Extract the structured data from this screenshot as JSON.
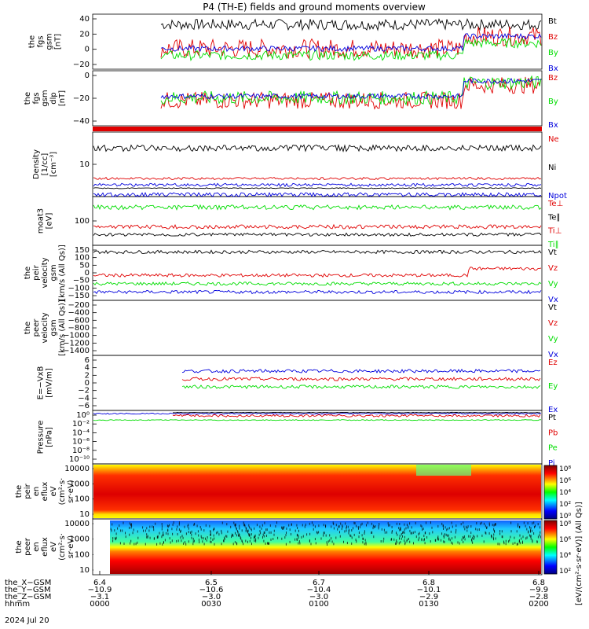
{
  "title": "P4 (TH-E) fields and ground moments overview",
  "colors": {
    "black": "#000000",
    "red": "#e00000",
    "green": "#00dd00",
    "blue": "#0000dd"
  },
  "chart_data": [
    {
      "type": "line",
      "panel": "fgs-gsm-1",
      "ylabel": [
        "the",
        "fgs",
        "gsm",
        "[nT]"
      ],
      "yticks": [
        "40",
        "20",
        "0",
        "−20"
      ],
      "ylim": [
        -35,
        45
      ],
      "series": [
        {
          "name": "Bt",
          "color": "black",
          "level": 30,
          "noise": 8
        },
        {
          "name": "Bz",
          "color": "red",
          "level": -5,
          "noise": 14
        },
        {
          "name": "By",
          "color": "green",
          "level": -15,
          "noise": 7
        },
        {
          "name": "Bx",
          "color": "blue",
          "level": -5,
          "noise": 4
        }
      ]
    },
    {
      "type": "line",
      "panel": "fgs-gsm-2",
      "ylabel": [
        "the",
        "fgs",
        "gsm",
        "dlp",
        "[nT]"
      ],
      "yticks": [
        "0",
        "−20",
        "−40"
      ],
      "ylim": [
        -55,
        10
      ],
      "series": [
        {
          "name": "Bz",
          "color": "red",
          "level": -25,
          "noise": 10
        },
        {
          "name": "By",
          "color": "green",
          "level": -22,
          "noise": 8
        },
        {
          "name": "Bx",
          "color": "blue",
          "level": -20,
          "noise": 3
        }
      ]
    },
    {
      "type": "line",
      "panel": "density",
      "ylabel": [
        "Density",
        "[1/cc]",
        "[cm⁻³]"
      ],
      "yticks": [
        "10"
      ],
      "series": [
        {
          "name": "Ne",
          "color": "red"
        },
        {
          "name": "Ni",
          "color": "black"
        },
        {
          "name": "Npot",
          "color": "blue"
        }
      ]
    },
    {
      "type": "line",
      "panel": "temperature",
      "ylabel": [
        "moat3",
        "[eV]"
      ],
      "yticks": [
        "100"
      ],
      "series": [
        {
          "name": "Te⊥",
          "color": "red"
        },
        {
          "name": "Te∥",
          "color": "black"
        },
        {
          "name": "Ti⊥",
          "color": "red"
        },
        {
          "name": "Ti∥",
          "color": "green"
        }
      ]
    },
    {
      "type": "line",
      "panel": "peir-velocity",
      "ylabel": [
        "the",
        "peir",
        "velocity",
        "gsm",
        "[km/s (All Qs)]"
      ],
      "yticks": [
        "150",
        "100",
        "50",
        "0",
        "−50",
        "−100",
        "−150"
      ],
      "ylim": [
        -160,
        170
      ],
      "series": [
        {
          "name": "Vt",
          "color": "black",
          "level": 130
        },
        {
          "name": "Vz",
          "color": "red",
          "level": -10
        },
        {
          "name": "Vy",
          "color": "green",
          "level": -60
        },
        {
          "name": "Vx",
          "color": "blue",
          "level": -110
        }
      ]
    },
    {
      "type": "line",
      "panel": "peer-velocity",
      "ylabel": [
        "the",
        "peer",
        "velocity",
        "gsm",
        "[km/s (All Qs)]"
      ],
      "yticks": [
        "−200",
        "−400",
        "−600",
        "−800",
        "−1000",
        "−1200",
        "−1400"
      ],
      "ylim": [
        -1450,
        -150
      ],
      "series": [
        {
          "name": "Vt",
          "color": "black"
        },
        {
          "name": "Vz",
          "color": "red"
        },
        {
          "name": "Vy",
          "color": "green"
        },
        {
          "name": "Vx",
          "color": "blue"
        }
      ]
    },
    {
      "type": "line",
      "panel": "efield",
      "ylabel": [
        "E=−VxB",
        "[mV/m]"
      ],
      "yticks": [
        "6",
        "4",
        "2",
        "0",
        "−2",
        "−4",
        "−6"
      ],
      "ylim": [
        -7,
        7
      ],
      "series": [
        {
          "name": "Ez",
          "color": "red",
          "level": 1
        },
        {
          "name": "Ey",
          "color": "green",
          "level": -1
        },
        {
          "name": "Ex",
          "color": "blue",
          "level": 3
        }
      ]
    },
    {
      "type": "line",
      "panel": "pressure",
      "ylabel": [
        "Pressure",
        "[nPa]"
      ],
      "yticks": [
        "10⁰",
        "10⁻²",
        "10⁻⁴",
        "10⁻⁶",
        "10⁻⁸",
        "10⁻¹⁰"
      ],
      "series": [
        {
          "name": "Pt",
          "color": "black"
        },
        {
          "name": "Pb",
          "color": "red"
        },
        {
          "name": "Pe",
          "color": "green"
        },
        {
          "name": "Pi",
          "color": "blue"
        }
      ]
    },
    {
      "type": "heatmap",
      "panel": "peir-spectrogram",
      "ylabel": [
        "the",
        "peir",
        "en",
        "eflux",
        "eV",
        "(cm²·s·",
        "sr·eV)"
      ],
      "yticks": [
        "10000",
        "1000",
        "100",
        "10"
      ],
      "colorbar_ticks": [
        "10⁸",
        "10⁶",
        "10⁴",
        "10²",
        "10⁰"
      ]
    },
    {
      "type": "heatmap",
      "panel": "peer-spectrogram",
      "ylabel": [
        "the",
        "peer",
        "en",
        "eflux",
        "eV",
        "(cm²·s·",
        "sr·eV)"
      ],
      "yticks": [
        "10000",
        "1000",
        "100",
        "10"
      ],
      "colorbar_ticks": [
        "10⁸",
        "10⁶",
        "10⁴",
        "10²"
      ]
    }
  ],
  "colorbar_label": "[eV/(cm²·s·sr·eV)] (All Qs)]",
  "xaxis": {
    "rows": [
      {
        "label": "the_X−GSM",
        "values": [
          "6.4",
          "6.5",
          "6.7",
          "6.8",
          "6.8"
        ]
      },
      {
        "label": "the_Y−GSM",
        "values": [
          "−10.9",
          "−10.6",
          "−10.4",
          "−10.1",
          "−9.9"
        ]
      },
      {
        "label": "the_Z−GSM",
        "values": [
          "−3.1",
          "−3.0",
          "−3.0",
          "−2.9",
          "−2.8"
        ]
      },
      {
        "label": "hhmm",
        "values": [
          "0000",
          "0030",
          "0100",
          "0130",
          "0200"
        ]
      }
    ],
    "date": "2024 Jul 20"
  }
}
